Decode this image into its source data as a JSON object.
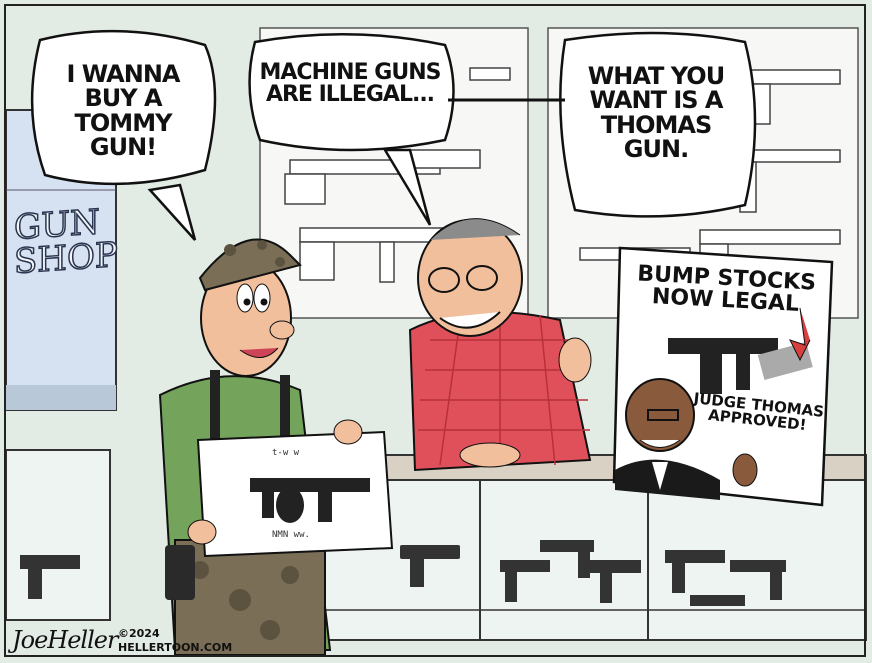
{
  "bubbles": {
    "customer": "I WANNA\nBUY A\nTOMMY GUN!",
    "clerk": "MACHINE GUNS\nARE ILLEGAL...",
    "clerk_continued": "WHAT YOU\nWANT IS A\nTHOMAS\nGUN."
  },
  "shop_window": "GUN\nSHOP",
  "sign": {
    "headline": "BUMP STOCKS\nNOW LEGAL",
    "caption": "JUDGE THOMAS\nAPPROVED!"
  },
  "poster_scribbles": {
    "top": "t-w  w",
    "bottom": "NMN  ww."
  },
  "credit": {
    "signature": "JoeHeller",
    "year": "©2024",
    "site": "HELLERTOON.COM"
  },
  "colors": {
    "wall": "#e2ebe4",
    "shirt_clerk": "#e0505a",
    "shirt_customer": "#74a35b",
    "skin": "#f2bf9c",
    "camo": "#7a6e57",
    "counter_glass": "#eef4f2"
  }
}
